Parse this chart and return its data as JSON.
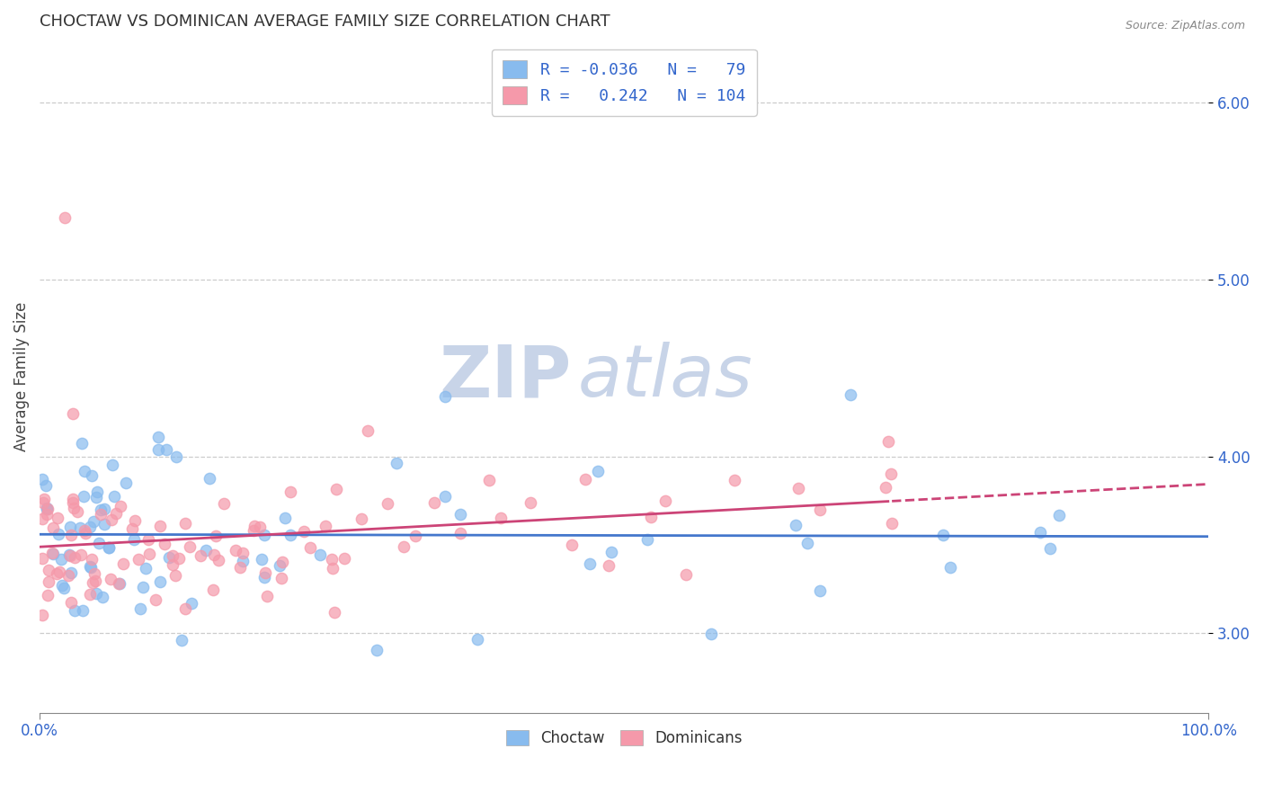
{
  "title": "CHOCTAW VS DOMINICAN AVERAGE FAMILY SIZE CORRELATION CHART",
  "source_text": "Source: ZipAtlas.com",
  "ylabel": "Average Family Size",
  "xlim": [
    0.0,
    100.0
  ],
  "ylim": [
    2.55,
    6.35
  ],
  "yticks": [
    3.0,
    4.0,
    5.0,
    6.0
  ],
  "xtick_labels": [
    "0.0%",
    "100.0%"
  ],
  "choctaw_color": "#88BBEE",
  "dominican_color": "#F599AA",
  "choctaw_R": -0.036,
  "choctaw_N": 79,
  "dominican_R": 0.242,
  "dominican_N": 104,
  "choctaw_line_color": "#4477CC",
  "dominican_line_color": "#CC4477",
  "grid_color": "#CCCCCC",
  "background_color": "#FFFFFF",
  "title_color": "#333333",
  "watermark_zip_color": "#C8D4E8",
  "watermark_atlas_color": "#C8D4E8",
  "watermark_zip": "ZIP",
  "watermark_atlas": "atlas"
}
